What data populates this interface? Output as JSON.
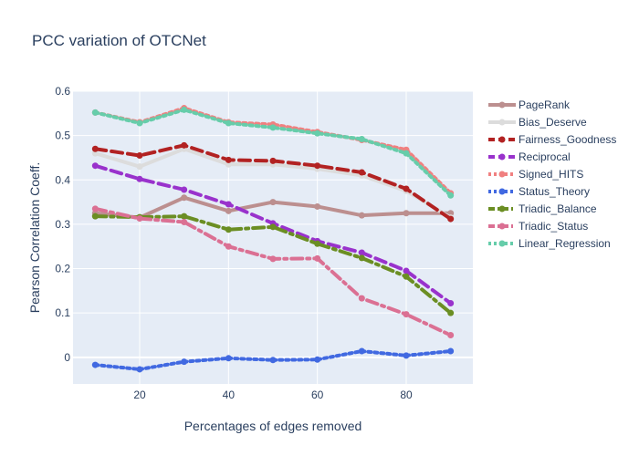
{
  "chart_data": {
    "type": "line",
    "title": "PCC variation of OTCNet",
    "xlabel": "Percentages of edges removed",
    "ylabel": "Pearson Correlation Coeff.",
    "x": [
      10,
      20,
      30,
      40,
      50,
      60,
      70,
      80,
      90
    ],
    "xlim": [
      5,
      95
    ],
    "ylim": [
      -0.06,
      0.6
    ],
    "xticks": [
      20,
      40,
      60,
      80
    ],
    "yticks": [
      0,
      0.1,
      0.2,
      0.3,
      0.4,
      0.5,
      0.6
    ],
    "ytick_labels": [
      "0",
      "0.1",
      "0.2",
      "0.3",
      "0.4",
      "0.5",
      "0.6"
    ],
    "grid": true,
    "legend_position": "right",
    "series": [
      {
        "name": "PageRank",
        "color": "#bc8f8f",
        "dash": "solid",
        "values": [
          0.325,
          0.315,
          0.36,
          0.33,
          0.35,
          0.34,
          0.32,
          0.325,
          0.325
        ]
      },
      {
        "name": "Bias_Deserve",
        "color": "#dcdcdc",
        "dash": "solid",
        "values": [
          0.46,
          0.43,
          0.47,
          0.435,
          0.435,
          0.425,
          0.41,
          0.375,
          0.315
        ]
      },
      {
        "name": "Fairness_Goodness",
        "color": "#b22222",
        "dash": "dash",
        "values": [
          0.47,
          0.455,
          0.478,
          0.445,
          0.443,
          0.432,
          0.417,
          0.38,
          0.312
        ]
      },
      {
        "name": "Reciprocal",
        "color": "#9932cc",
        "dash": "dash",
        "values": [
          0.432,
          0.402,
          0.378,
          0.345,
          0.302,
          0.262,
          0.236,
          0.195,
          0.122
        ]
      },
      {
        "name": "Signed_HITS",
        "color": "#f08080",
        "dash": "dot",
        "values": [
          0.552,
          0.53,
          0.562,
          0.53,
          0.525,
          0.508,
          0.49,
          0.468,
          0.37
        ]
      },
      {
        "name": "Status_Theory",
        "color": "#4169e1",
        "dash": "dot",
        "values": [
          -0.017,
          -0.027,
          -0.01,
          -0.002,
          -0.006,
          -0.005,
          0.014,
          0.004,
          0.014
        ]
      },
      {
        "name": "Triadic_Balance",
        "color": "#6b8e23",
        "dash": "dashdot",
        "values": [
          0.318,
          0.316,
          0.318,
          0.288,
          0.294,
          0.256,
          0.224,
          0.182,
          0.1
        ]
      },
      {
        "name": "Triadic_Status",
        "color": "#db7093",
        "dash": "dashdot",
        "values": [
          0.335,
          0.313,
          0.305,
          0.25,
          0.222,
          0.223,
          0.133,
          0.097,
          0.05
        ]
      },
      {
        "name": "Linear_Regression",
        "color": "#66cdaa",
        "dash": "dot",
        "values": [
          0.552,
          0.528,
          0.558,
          0.528,
          0.518,
          0.505,
          0.492,
          0.46,
          0.365
        ]
      }
    ]
  }
}
